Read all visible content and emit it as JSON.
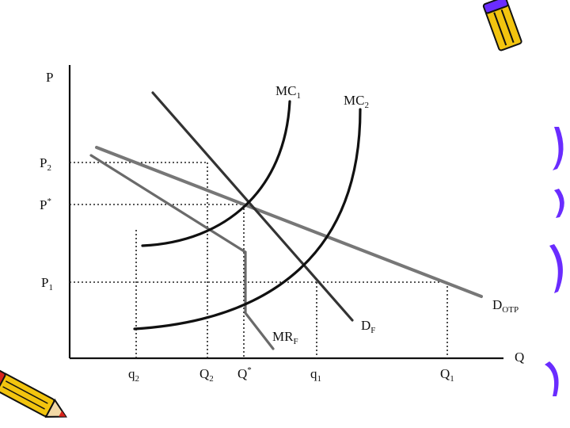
{
  "diagram": {
    "axes": {
      "y_label": "P",
      "x_label": "Q"
    },
    "price_levels": [
      {
        "id": "P2",
        "base": "P",
        "sub": "2"
      },
      {
        "id": "Pstar",
        "base": "P",
        "sup": "*"
      },
      {
        "id": "P1",
        "base": "P",
        "sub": "1"
      }
    ],
    "quantity_levels": [
      {
        "id": "q2",
        "base": "q",
        "sub": "2"
      },
      {
        "id": "Q2",
        "base": "Q",
        "sub": "2"
      },
      {
        "id": "Qstar",
        "base": "Q",
        "sup": "*"
      },
      {
        "id": "q1",
        "base": "q",
        "sub": "1"
      },
      {
        "id": "Q1",
        "base": "Q",
        "sub": "1"
      }
    ],
    "curves": {
      "mc1": {
        "base": "MC",
        "sub": "1",
        "color": "#111111"
      },
      "mc2": {
        "base": "MC",
        "sub": "2",
        "color": "#111111"
      },
      "df": {
        "base": "D",
        "sub": "F",
        "color": "#3a3a3a"
      },
      "dotp": {
        "base": "D",
        "sub": "OTP",
        "color": "#555555"
      },
      "mrf": {
        "base": "MR",
        "sub": "F",
        "color": "#6a6a6a"
      }
    },
    "guide_color": "#222222"
  },
  "decorations": {
    "top_right": "pencil-icon",
    "bottom_left": "pencil-icon",
    "right_edge": "purple-swoosh",
    "accent_purple": "#6a2cff",
    "accent_yellow": "#f2c40f",
    "accent_red": "#d8231c"
  }
}
